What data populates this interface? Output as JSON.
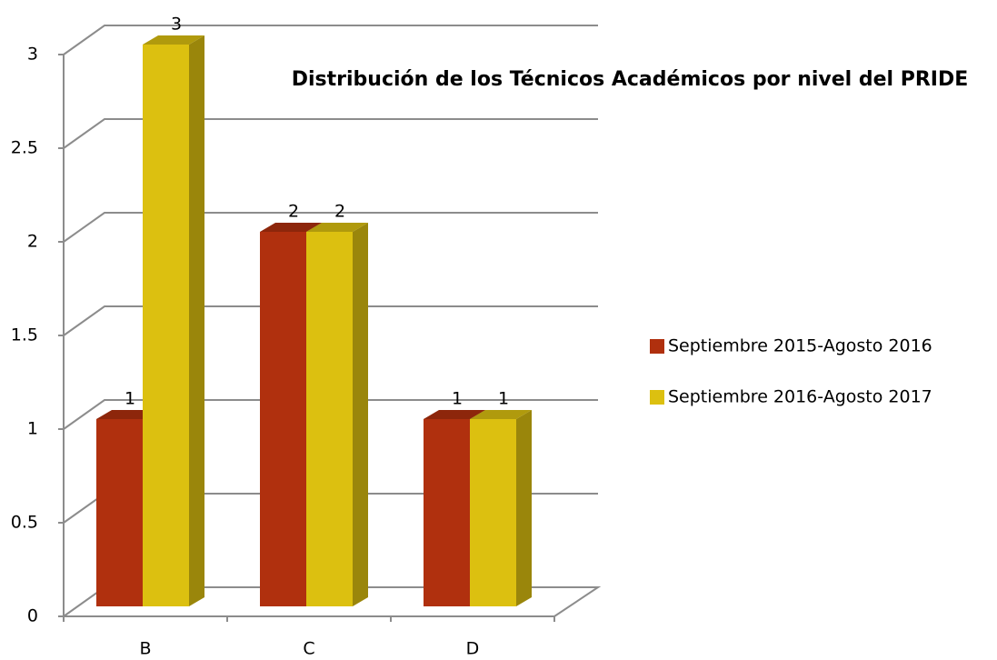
{
  "chart_data": {
    "type": "bar3d",
    "title": "Distribución de los Técnicos Académicos por nivel del PRIDE",
    "categories": [
      "B",
      "C",
      "D"
    ],
    "series": [
      {
        "name": "Septiembre 2015-Agosto 2016",
        "color": "#b0300e",
        "values": [
          1,
          2,
          1
        ]
      },
      {
        "name": "Septiembre 2016-Agosto 2017",
        "color": "#dcc010",
        "values": [
          3,
          2,
          1
        ]
      }
    ],
    "ylim": [
      0,
      3
    ],
    "yticks": [
      0,
      0.5,
      1,
      1.5,
      2,
      2.5,
      3
    ],
    "grid": true,
    "legend": "right"
  }
}
